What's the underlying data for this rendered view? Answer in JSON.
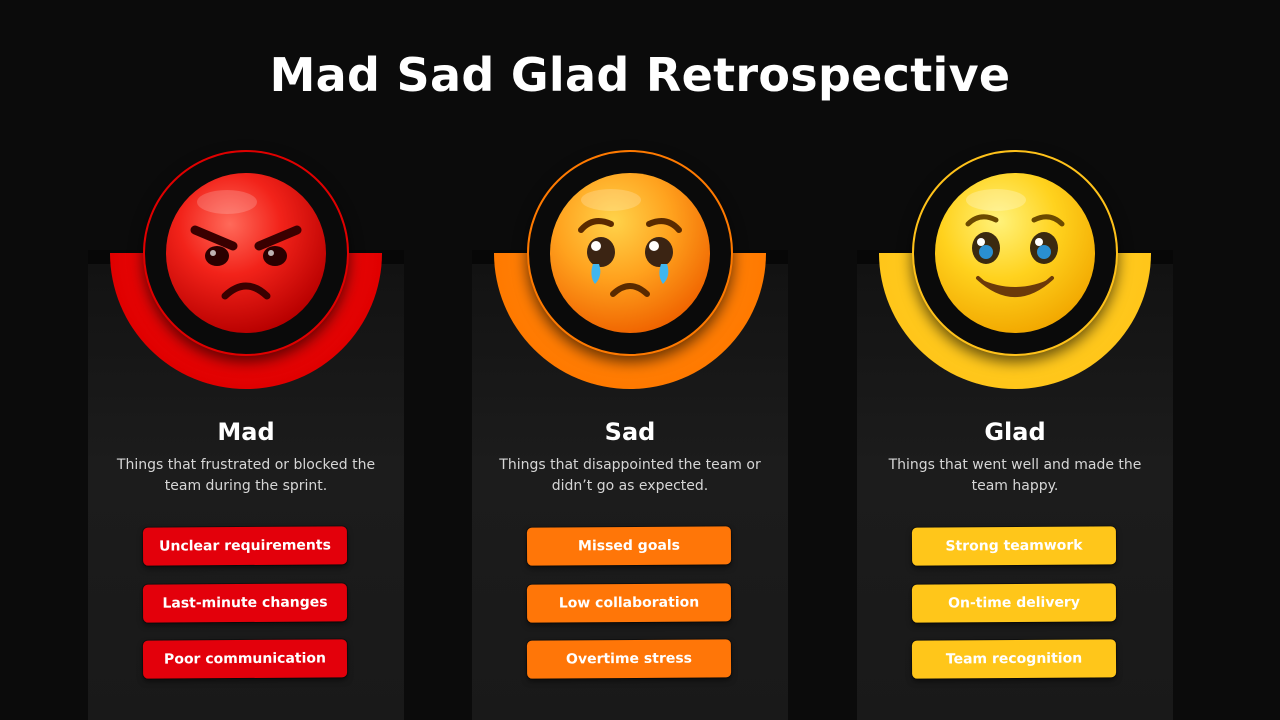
{
  "title": "Mad Sad Glad Retrospective",
  "columns": [
    {
      "name": "Mad",
      "icon": "angry-face-icon",
      "color": "#e3000b",
      "description": "Things that frustrated or blocked the team during the sprint.",
      "items": [
        "Unclear requirements",
        "Last-minute changes",
        "Poor communication"
      ]
    },
    {
      "name": "Sad",
      "icon": "crying-face-icon",
      "color": "#ff7608",
      "description": "Things that disappointed the team or didn’t go as expected.",
      "items": [
        "Missed goals",
        "Low collaboration",
        "Overtime stress"
      ]
    },
    {
      "name": "Glad",
      "icon": "smiling-face-icon",
      "color": "#ffc61a",
      "description": "Things that went well and made the team happy.",
      "items": [
        "Strong teamwork",
        "On-time delivery",
        "Team recognition"
      ]
    }
  ]
}
